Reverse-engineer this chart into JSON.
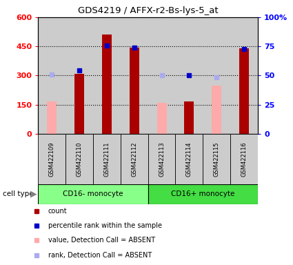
{
  "title": "GDS4219 / AFFX-r2-Bs-lys-5_at",
  "samples": [
    "GSM422109",
    "GSM422110",
    "GSM422111",
    "GSM422112",
    "GSM422113",
    "GSM422114",
    "GSM422115",
    "GSM422116"
  ],
  "count_values": [
    null,
    310,
    510,
    445,
    null,
    165,
    null,
    440
  ],
  "count_absent": [
    165,
    null,
    null,
    null,
    160,
    null,
    250,
    null
  ],
  "percentile_values": [
    null,
    325,
    455,
    445,
    null,
    300,
    null,
    438
  ],
  "percentile_absent": [
    305,
    null,
    null,
    null,
    300,
    null,
    292,
    null
  ],
  "ylim_left": [
    0,
    600
  ],
  "ylim_right": [
    0,
    600
  ],
  "left_ticks": [
    0,
    150,
    300,
    450,
    600
  ],
  "left_tick_labels": [
    "0",
    "150",
    "300",
    "450",
    "600"
  ],
  "right_ticks": [
    0,
    150,
    300,
    450,
    600
  ],
  "right_tick_labels": [
    "0",
    "25",
    "50",
    "75",
    "100%"
  ],
  "count_color": "#aa0000",
  "count_absent_color": "#ffaaaa",
  "percentile_color": "#0000cc",
  "percentile_absent_color": "#aaaaee",
  "bg_color": "#cccccc",
  "ct_color_cd16minus": "#88ff88",
  "ct_color_cd16plus": "#44dd44",
  "legend_items": [
    {
      "label": "count",
      "color": "#aa0000"
    },
    {
      "label": "percentile rank within the sample",
      "color": "#0000cc"
    },
    {
      "label": "value, Detection Call = ABSENT",
      "color": "#ffaaaa"
    },
    {
      "label": "rank, Detection Call = ABSENT",
      "color": "#aaaaee"
    }
  ],
  "cell_type_groups": [
    {
      "label": "CD16- monocyte",
      "start": 0,
      "end": 3,
      "color": "#88ff88"
    },
    {
      "label": "CD16+ monocyte",
      "start": 4,
      "end": 7,
      "color": "#44dd44"
    }
  ]
}
